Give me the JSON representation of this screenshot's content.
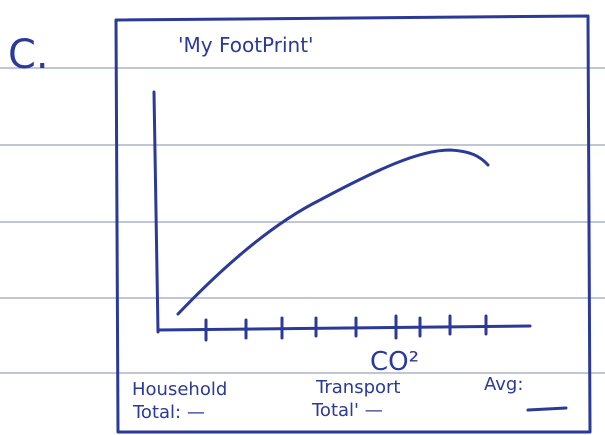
{
  "label": "C.",
  "title": "'My FootPrint'",
  "axis_label": "CO²",
  "footer": {
    "household": {
      "heading": "Household",
      "total": "Total: —"
    },
    "transport": {
      "heading": "Transport",
      "total": "Total' —"
    },
    "avg": {
      "heading": "Avg:"
    }
  }
}
